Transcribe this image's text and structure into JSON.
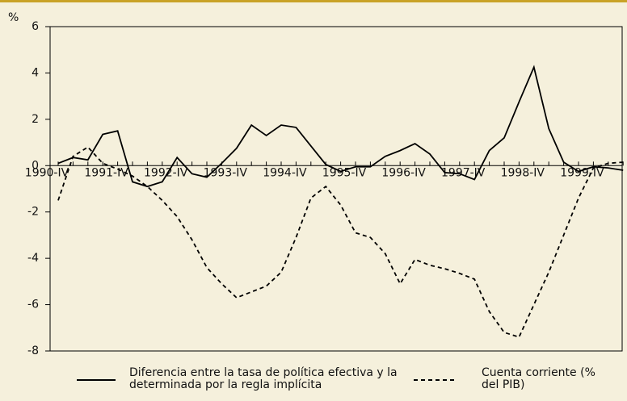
{
  "chart_data": {
    "type": "line",
    "y_label": "%",
    "categories": [
      "1990-IV",
      null,
      null,
      null,
      "1991-IV",
      null,
      null,
      null,
      "1992-IV",
      null,
      null,
      null,
      "1993-IV",
      null,
      null,
      null,
      "1994-IV",
      null,
      null,
      null,
      "1995-IV",
      null,
      null,
      null,
      "1996-IV",
      null,
      null,
      null,
      "1997-IV",
      null,
      null,
      null,
      "1998-IV",
      null,
      null,
      null,
      "1999-IV",
      null,
      null
    ],
    "series": [
      {
        "name": "Diferencia entre la tasa de política efectiva y la determinada por la regla implícita",
        "color": "#000000",
        "dash": "solid",
        "values": [
          0.1,
          0.35,
          0.25,
          1.35,
          1.5,
          -0.7,
          -0.9,
          -0.7,
          0.35,
          -0.35,
          -0.5,
          0.1,
          0.75,
          1.75,
          1.3,
          1.75,
          1.65,
          0.85,
          0.05,
          -0.25,
          -0.05,
          -0.05,
          0.4,
          0.65,
          0.95,
          0.5,
          -0.3,
          -0.35,
          -0.6,
          0.65,
          1.2,
          2.75,
          4.25,
          1.6,
          0.15,
          -0.25,
          -0.05,
          -0.1,
          -0.2
        ]
      },
      {
        "name": "Cuenta corriente (% del PIB)",
        "color": "#000000",
        "dash": "dashed",
        "values": [
          -1.5,
          0.4,
          0.8,
          0.1,
          -0.15,
          -0.45,
          -0.9,
          -1.5,
          -2.2,
          -3.2,
          -4.4,
          -5.1,
          -5.7,
          -5.45,
          -5.2,
          -4.6,
          -3.1,
          -1.4,
          -0.9,
          -1.7,
          -2.9,
          -3.1,
          -3.8,
          -5.1,
          -4.05,
          -4.3,
          -4.45,
          -4.65,
          -4.9,
          -6.3,
          -7.2,
          -7.4,
          -6.0,
          -4.6,
          -3.0,
          -1.4,
          -0.1,
          0.1,
          0.15
        ]
      }
    ],
    "ylim": [
      -8,
      6
    ],
    "yticks": [
      -8,
      -6,
      -4,
      -2,
      0,
      2,
      4,
      6
    ],
    "grid": false
  }
}
